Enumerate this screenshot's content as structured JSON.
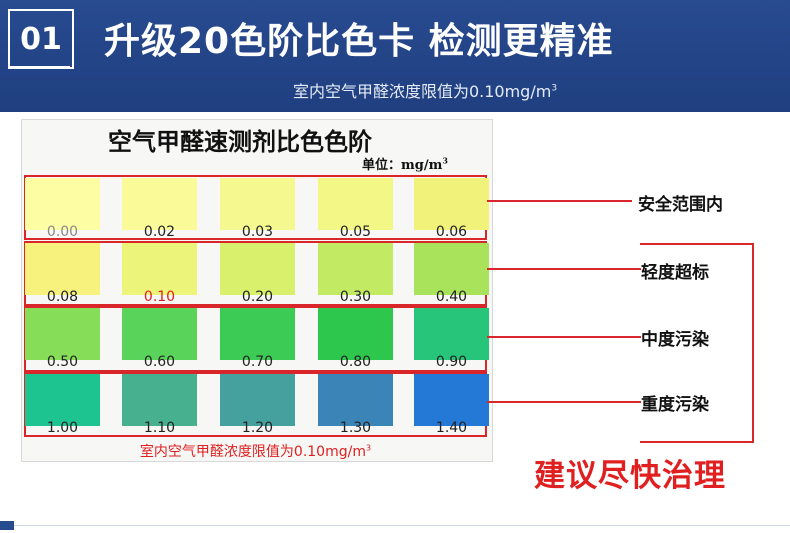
{
  "header": {
    "number": "01",
    "title": "升级20色阶比色卡  检测更精准",
    "subtitle_text": "室内空气甲醛浓度限值为0.10mg/m",
    "subtitle_sup": "3"
  },
  "card": {
    "title": "空气甲醛速测剂比色色阶",
    "unit_text": "单位：mg/m",
    "unit_sup": "3",
    "footer_text": "室内空气甲醛浓度限值为0.10mg/m",
    "footer_sup": "3",
    "rows": [
      {
        "swatches": [
          {
            "value": "0.00",
            "color": "#fdfda3"
          },
          {
            "value": "0.02",
            "color": "#fafa98"
          },
          {
            "value": "0.03",
            "color": "#f5f88f"
          },
          {
            "value": "0.05",
            "color": "#f3f786"
          },
          {
            "value": "0.06",
            "color": "#f0f27a"
          }
        ]
      },
      {
        "swatches": [
          {
            "value": "0.08",
            "color": "#f6f27d"
          },
          {
            "value": "0.10",
            "color": "#ecf57a"
          },
          {
            "value": "0.20",
            "color": "#d9f06c"
          },
          {
            "value": "0.30",
            "color": "#c3ea63"
          },
          {
            "value": "0.40",
            "color": "#a9e35c"
          }
        ]
      },
      {
        "swatches": [
          {
            "value": "0.50",
            "color": "#86dd58"
          },
          {
            "value": "0.60",
            "color": "#5ad35b"
          },
          {
            "value": "0.70",
            "color": "#3ccc56"
          },
          {
            "value": "0.80",
            "color": "#2ec74e"
          },
          {
            "value": "0.90",
            "color": "#26c57a"
          }
        ]
      },
      {
        "swatches": [
          {
            "value": "1.00",
            "color": "#1dc48f"
          },
          {
            "value": "1.10",
            "color": "#47b08f"
          },
          {
            "value": "1.20",
            "color": "#45a19e"
          },
          {
            "value": "1.30",
            "color": "#3b84b7"
          },
          {
            "value": "1.40",
            "color": "#2478d6"
          }
        ]
      }
    ]
  },
  "levels": {
    "safe": "安全范围内",
    "light": "轻度超标",
    "medium": "中度污染",
    "heavy": "重度污染"
  },
  "advice": "建议尽快治理",
  "colors": {
    "banner": "#284a8f",
    "accent_red": "#d8262a"
  }
}
